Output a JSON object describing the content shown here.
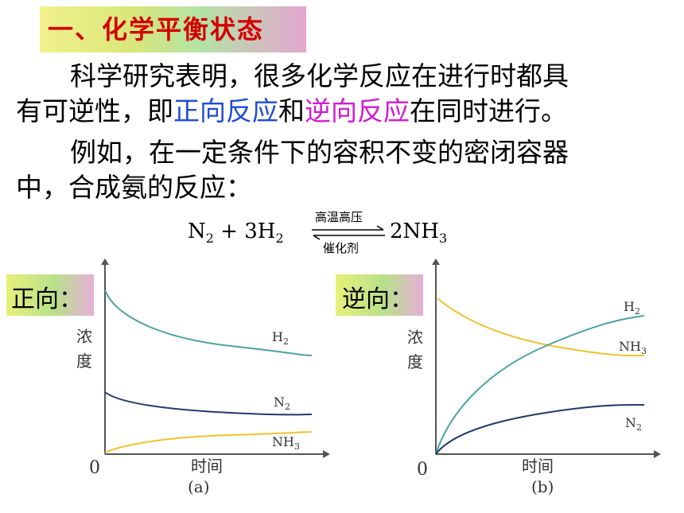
{
  "section_title": "一、化学平衡状态",
  "para1": {
    "line1": "科学研究表明，很多化学反应在进行时都具",
    "line2_prefix": "有可逆性，即",
    "forward": "正向反应",
    "and": "和",
    "reverse": "逆向反应",
    "line2_suffix": "在同时进行。"
  },
  "para2": {
    "line1": "例如，在一定条件下的容积不变的密闭容器",
    "line2": "中，合成氨的反应："
  },
  "equation": {
    "n": "N",
    "n_sub": "2",
    "plus": " + ",
    "h_coef": "3H",
    "h_sub": "2",
    "product": "2NH",
    "product_sub": "3",
    "cond_top": "高温高压",
    "cond_bottom": "催化剂"
  },
  "chart_a": {
    "tag": "正向：",
    "ylabel_1": "浓",
    "ylabel_2": "度",
    "origin": "0",
    "xlabel": "时间",
    "caption": "(a)",
    "series_labels": {
      "h2": "H",
      "h2_sub": "2",
      "n2": "N",
      "n2_sub": "2",
      "nh3": "NH",
      "nh3_sub": "3"
    }
  },
  "chart_b": {
    "tag": "逆向：",
    "ylabel_1": "浓",
    "ylabel_2": "度",
    "origin": "0",
    "xlabel": "时间",
    "caption": "(b)",
    "series_labels": {
      "h2": "H",
      "h2_sub": "2",
      "n2": "N",
      "n2_sub": "2",
      "nh3": "NH",
      "nh3_sub": "3"
    }
  },
  "colors": {
    "title_red": "#d40000",
    "blue_text": "#1f4bd8",
    "magenta_text": "#d21ad2",
    "h2_curve": "#4aa3a0",
    "n2_curve": "#1e3a6e",
    "nh3_curve": "#f2c12e"
  }
}
